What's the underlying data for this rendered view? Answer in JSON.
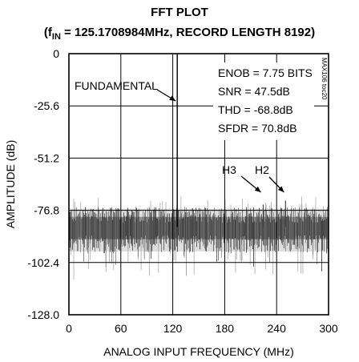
{
  "chart_data": {
    "type": "line",
    "title": "FFT PLOT",
    "subtitle": {
      "prefix": "(f",
      "sub": "IN",
      "rest": " = 125.1708984MHz, RECORD LENGTH 8192)"
    },
    "xlabel": "ANALOG INPUT FREQUENCY (MHz)",
    "ylabel": "AMPLITUDE (dB)",
    "xlim": [
      0,
      300
    ],
    "ylim": [
      -128.0,
      0
    ],
    "xticks": [
      {
        "v": 0,
        "label": "0"
      },
      {
        "v": 60,
        "label": "60"
      },
      {
        "v": 120,
        "label": "120"
      },
      {
        "v": 180,
        "label": "180"
      },
      {
        "v": 240,
        "label": "240"
      },
      {
        "v": 300,
        "label": "300"
      }
    ],
    "yticks": [
      {
        "v": 0,
        "label": "0"
      },
      {
        "v": -25.6,
        "label": "-25.6"
      },
      {
        "v": -51.2,
        "label": "-51.2"
      },
      {
        "v": -76.8,
        "label": "-76.8"
      },
      {
        "v": -102.4,
        "label": "-102.4"
      },
      {
        "v": -128.0,
        "label": "-128.0"
      }
    ],
    "grid": true,
    "fundamental": {
      "x": 125.17,
      "y": 0
    },
    "harmonics": [
      {
        "name": "H2",
        "x": 250.3,
        "y": -72
      },
      {
        "name": "H3",
        "x": 224.5,
        "y": -74
      }
    ],
    "noise_floor_db": -85,
    "noise_band_db": [
      -97,
      -76
    ],
    "annotations": [
      {
        "id": "fundamental",
        "text": "FUNDAMENTAL"
      },
      {
        "id": "h3",
        "text": "H3"
      },
      {
        "id": "h2",
        "text": "H2"
      }
    ],
    "metrics": [
      {
        "text": "ENOB = 7.75 BITS"
      },
      {
        "text": "SNR = 47.5dB"
      },
      {
        "text": "THD = -68.8dB"
      },
      {
        "text": "SFDR = 70.8dB"
      }
    ],
    "code": "MAX106 toc20"
  }
}
